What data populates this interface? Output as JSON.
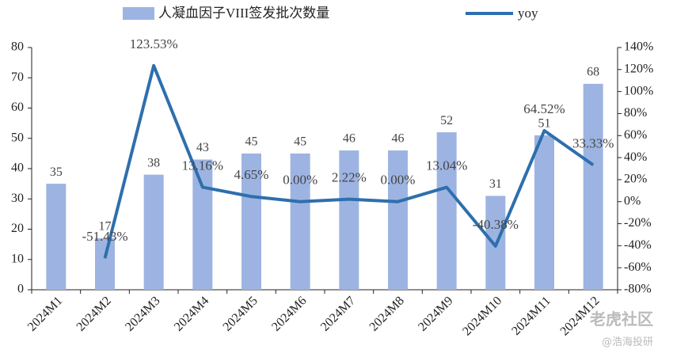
{
  "chart_data": {
    "type": "bar-line",
    "categories": [
      "2024M1",
      "2024M2",
      "2024M3",
      "2024M4",
      "2024M5",
      "2024M6",
      "2024M7",
      "2024M8",
      "2024M9",
      "2024M10",
      "2024M11",
      "2024M12"
    ],
    "series": [
      {
        "name": "人凝血因子VIII签发批次数量",
        "type": "bar",
        "color": "#9db4e2",
        "values": [
          35,
          17,
          38,
          43,
          45,
          45,
          46,
          46,
          52,
          31,
          51,
          68
        ]
      },
      {
        "name": "yoy",
        "type": "line",
        "axis": "y2",
        "color": "#2e6fad",
        "values": [
          null,
          -51.43,
          123.53,
          13.16,
          4.65,
          0.0,
          2.22,
          0.0,
          13.04,
          -40.38,
          64.52,
          33.33
        ],
        "value_labels": [
          null,
          "-51.43%",
          "123.53%",
          "13.16%",
          "4.65%",
          "0.00%",
          "2.22%",
          "0.00%",
          "13.04%",
          "-40.38%",
          "64.52%",
          "33.33%"
        ]
      }
    ],
    "ylim": [
      0,
      80
    ],
    "yticks": [
      0,
      10,
      20,
      30,
      40,
      50,
      60,
      70,
      80
    ],
    "y2lim": [
      -80,
      140
    ],
    "y2ticks": [
      {
        "value": -80,
        "label": "-80%"
      },
      {
        "value": -60,
        "label": "-60%"
      },
      {
        "value": -40,
        "label": "-40%"
      },
      {
        "value": -20,
        "label": "-20%"
      },
      {
        "value": 0,
        "label": "0%"
      },
      {
        "value": 20,
        "label": "20%"
      },
      {
        "value": 40,
        "label": "40%"
      },
      {
        "value": 60,
        "label": "60%"
      },
      {
        "value": 80,
        "label": "80%"
      },
      {
        "value": 100,
        "label": "100%"
      },
      {
        "value": 120,
        "label": "120%"
      },
      {
        "value": 140,
        "label": "140%"
      }
    ],
    "watermarks": [
      "老虎社区",
      "@浩海投研"
    ]
  }
}
